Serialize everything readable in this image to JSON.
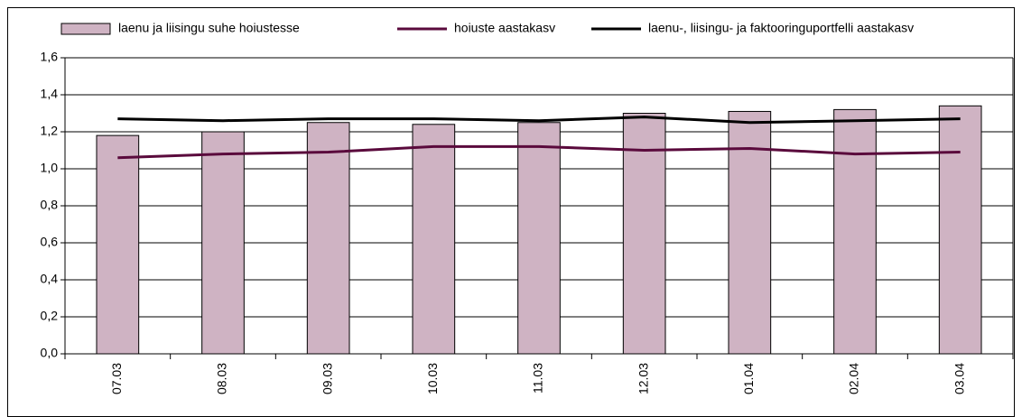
{
  "chart_data": {
    "type": "bar",
    "categories": [
      "07.03",
      "08.03",
      "09.03",
      "10.03",
      "11.03",
      "12.03",
      "01.04",
      "02.04",
      "03.04"
    ],
    "series": [
      {
        "name": "laenu ja liisingu suhe hoiustesse",
        "type": "bar",
        "color": "#cfb3c3",
        "values": [
          1.18,
          1.2,
          1.25,
          1.24,
          1.25,
          1.3,
          1.31,
          1.32,
          1.34
        ]
      },
      {
        "name": "hoiuste aastakasv",
        "type": "line",
        "color": "#5a0a3c",
        "values": [
          1.06,
          1.08,
          1.09,
          1.12,
          1.12,
          1.1,
          1.11,
          1.08,
          1.09
        ]
      },
      {
        "name": "laenu-, liisingu- ja faktooringuportfelli aastakasv",
        "type": "line",
        "color": "#000000",
        "values": [
          1.27,
          1.26,
          1.27,
          1.27,
          1.26,
          1.28,
          1.25,
          1.26,
          1.27
        ]
      }
    ],
    "ylim": [
      0,
      1.6
    ],
    "yticks": [
      {
        "value": 0,
        "label": "0,0"
      },
      {
        "value": 0.2,
        "label": "0,2"
      },
      {
        "value": 0.4,
        "label": "0,4"
      },
      {
        "value": 0.6,
        "label": "0,6"
      },
      {
        "value": 0.8,
        "label": "0,8"
      },
      {
        "value": 1.0,
        "label": "1,0"
      },
      {
        "value": 1.2,
        "label": "1,2"
      },
      {
        "value": 1.4,
        "label": "1,4"
      },
      {
        "value": 1.6,
        "label": "1,6"
      }
    ],
    "grid": true,
    "legend": "top"
  }
}
